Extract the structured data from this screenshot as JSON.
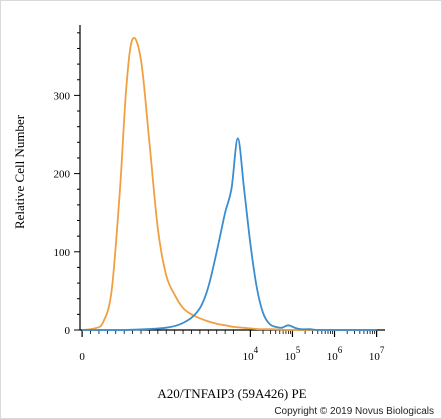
{
  "chart_data": {
    "type": "line",
    "ylabel": "Relative Cell Number",
    "xlabel": "A20/TNFAIP3 (59A426) PE",
    "y_ticks": [
      0,
      100,
      200,
      300
    ],
    "ylim": [
      0,
      390
    ],
    "x_ticks": [
      {
        "pos": 0,
        "label": "0",
        "base": "",
        "exp": ""
      },
      {
        "pos": 4,
        "label": "",
        "base": "10",
        "exp": "4"
      },
      {
        "pos": 5,
        "label": "",
        "base": "10",
        "exp": "5"
      },
      {
        "pos": 6,
        "label": "",
        "base": "10",
        "exp": "6"
      },
      {
        "pos": 7,
        "label": "",
        "base": "10",
        "exp": "7"
      }
    ],
    "xlim": [
      -0.05,
      7.2
    ],
    "grid": false,
    "series": [
      {
        "color": "#f0a040",
        "x": [
          0.0,
          0.3,
          0.5,
          0.7,
          0.9,
          1.05,
          1.2,
          1.4,
          1.6,
          1.8,
          2.0,
          2.2,
          2.4,
          2.6,
          2.8,
          3.0,
          3.2,
          3.4,
          3.6,
          3.8,
          4.0,
          4.2,
          4.5,
          5.0,
          6.0,
          7.0
        ],
        "values": [
          0,
          2,
          10,
          50,
          180,
          310,
          372,
          345,
          240,
          130,
          70,
          45,
          28,
          20,
          15,
          11,
          8,
          6,
          4,
          3,
          2,
          1,
          1,
          0,
          0,
          0
        ]
      },
      {
        "color": "#3a8dd0",
        "x": [
          0.0,
          1.0,
          2.0,
          2.5,
          2.8,
          3.0,
          3.2,
          3.4,
          3.55,
          3.7,
          3.85,
          4.0,
          4.15,
          4.3,
          4.45,
          4.6,
          4.75,
          4.9,
          5.05,
          5.2,
          5.4,
          5.6,
          5.8,
          6.0,
          7.0
        ],
        "values": [
          0,
          0,
          3,
          12,
          28,
          55,
          100,
          150,
          180,
          245,
          180,
          110,
          55,
          22,
          8,
          4,
          3,
          6,
          3,
          1,
          1,
          0,
          0,
          0,
          0
        ]
      }
    ]
  },
  "footer": {
    "copyright": "Copyright © 2019 Novus Biologicals"
  }
}
